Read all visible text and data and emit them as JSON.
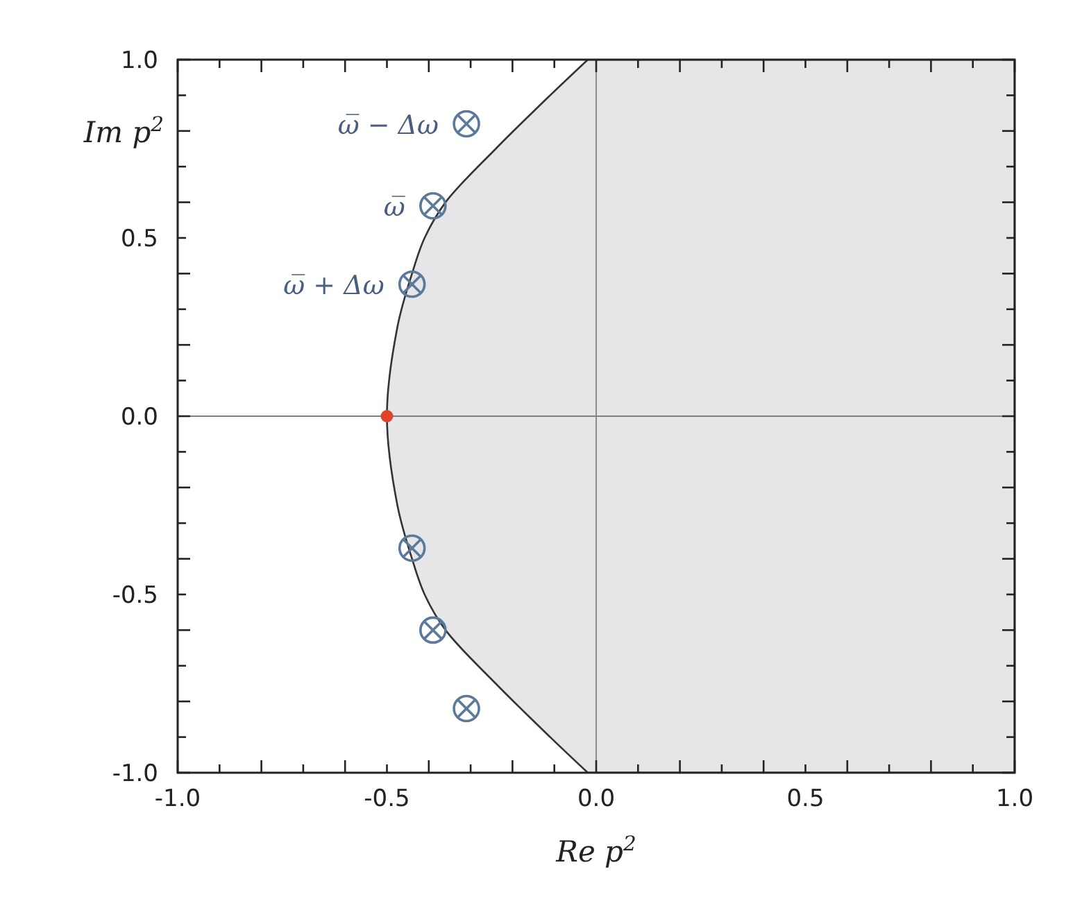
{
  "chart_data": {
    "type": "scatter",
    "xlabel": "Re p$^{2}$",
    "ylabel": "Im p$^{2}$",
    "xlim": [
      -1,
      1
    ],
    "ylim": [
      -1,
      1
    ],
    "xticks": [
      {
        "value": -1,
        "label": "-1.0"
      },
      {
        "value": -0.9,
        "label": null
      },
      {
        "value": -0.8,
        "label": null
      },
      {
        "value": -0.7,
        "label": null
      },
      {
        "value": -0.6,
        "label": null
      },
      {
        "value": -0.5,
        "label": "-0.5"
      },
      {
        "value": -0.4,
        "label": null
      },
      {
        "value": -0.3,
        "label": null
      },
      {
        "value": -0.2,
        "label": null
      },
      {
        "value": -0.1,
        "label": null
      },
      {
        "value": 0,
        "label": "0.0"
      },
      {
        "value": 0.1,
        "label": null
      },
      {
        "value": 0.2,
        "label": null
      },
      {
        "value": 0.3,
        "label": null
      },
      {
        "value": 0.4,
        "label": null
      },
      {
        "value": 0.5,
        "label": "0.5"
      },
      {
        "value": 0.6,
        "label": null
      },
      {
        "value": 0.7,
        "label": null
      },
      {
        "value": 0.8,
        "label": null
      },
      {
        "value": 0.9,
        "label": null
      },
      {
        "value": 1,
        "label": "1.0"
      }
    ],
    "yticks": [
      {
        "value": -1,
        "label": "-1.0"
      },
      {
        "value": -0.9,
        "label": null
      },
      {
        "value": -0.8,
        "label": null
      },
      {
        "value": -0.7,
        "label": null
      },
      {
        "value": -0.6,
        "label": null
      },
      {
        "value": -0.5,
        "label": "-0.5"
      },
      {
        "value": -0.4,
        "label": null
      },
      {
        "value": -0.3,
        "label": null
      },
      {
        "value": -0.2,
        "label": null
      },
      {
        "value": -0.1,
        "label": null
      },
      {
        "value": 0,
        "label": "0.0"
      },
      {
        "value": 0.1,
        "label": null
      },
      {
        "value": 0.2,
        "label": null
      },
      {
        "value": 0.3,
        "label": null
      },
      {
        "value": 0.4,
        "label": null
      },
      {
        "value": 0.5,
        "label": "0.5"
      },
      {
        "value": 0.6,
        "label": null
      },
      {
        "value": 0.7,
        "label": null
      },
      {
        "value": 0.8,
        "label": null
      },
      {
        "value": 0.9,
        "label": null
      },
      {
        "value": 1,
        "label": "1.0"
      }
    ],
    "series": [
      {
        "type": "area",
        "color": "#e6e6e9",
        "x": [
          1,
          -0.02,
          -0.11,
          -0.24,
          -0.36,
          -0.41,
          -0.44,
          -0.475,
          -0.5,
          -0.475,
          -0.44,
          -0.41,
          -0.36,
          -0.24,
          -0.11,
          -0.02,
          1
        ],
        "values": [
          -1,
          -1,
          -0.9,
          -0.75,
          -0.6,
          -0.5,
          -0.4,
          -0.25,
          0,
          0.25,
          0.4,
          0.5,
          0.6,
          0.75,
          0.9,
          1,
          1
        ]
      },
      {
        "color": "#5b7a9a",
        "marker": "cross",
        "x": [
          -0.31,
          -0.39,
          -0.44,
          -0.44,
          -0.39,
          -0.31
        ],
        "values": [
          0.82,
          0.59,
          0.37,
          -0.37,
          -0.6,
          -0.82
        ]
      },
      {
        "color": "#e0452b",
        "marker": "circle",
        "x": [
          -0.5
        ],
        "values": [
          0
        ]
      }
    ],
    "ref_lines": [
      {
        "axis": "x",
        "value": 0,
        "color": "#8c8c8c"
      },
      {
        "axis": "y",
        "value": 0,
        "color": "#7f7f7f"
      }
    ],
    "annotations": [
      {
        "text": "ω̅ − Δω",
        "x": -0.31,
        "y": 0.82
      },
      {
        "text": "ω̅",
        "x": -0.39,
        "y": 0.59
      },
      {
        "text": "ω̅ + Δω",
        "x": -0.44,
        "y": 0.37
      }
    ],
    "grid": false
  }
}
